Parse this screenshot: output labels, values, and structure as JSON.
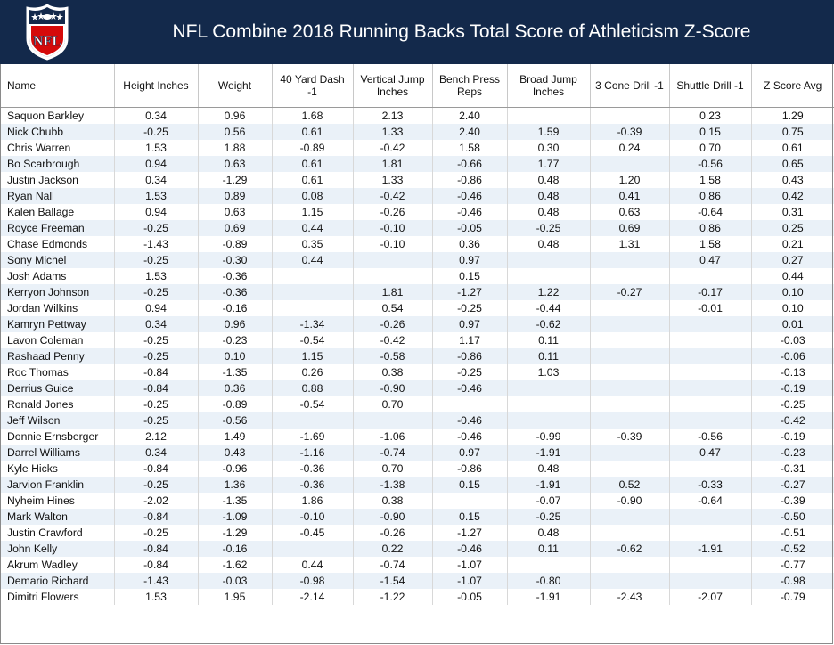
{
  "header": {
    "title": "NFL Combine 2018 Running Backs Total Score of Athleticism Z-Score",
    "logo_text": "NFL",
    "colors": {
      "navy": "#13294b",
      "red": "#d50a0a",
      "white": "#ffffff"
    }
  },
  "chart_data": {
    "type": "table",
    "title": "NFL Combine 2018 Running Backs Total Score of Athleticism Z-Score",
    "columns": [
      "Name",
      "Height Inches",
      "Weight",
      "40 Yard Dash -1",
      "Vertical Jump Inches",
      "Bench Press Reps",
      "Broad Jump Inches",
      "3 Cone Drill -1",
      "Shuttle Drill -1",
      "Z Score Avg"
    ],
    "rows": [
      [
        "Saquon Barkley",
        "0.34",
        "0.96",
        "1.68",
        "2.13",
        "2.40",
        "",
        "",
        "0.23",
        "1.29"
      ],
      [
        "Nick Chubb",
        "-0.25",
        "0.56",
        "0.61",
        "1.33",
        "2.40",
        "1.59",
        "-0.39",
        "0.15",
        "0.75"
      ],
      [
        "Chris Warren",
        "1.53",
        "1.88",
        "-0.89",
        "-0.42",
        "1.58",
        "0.30",
        "0.24",
        "0.70",
        "0.61"
      ],
      [
        "Bo Scarbrough",
        "0.94",
        "0.63",
        "0.61",
        "1.81",
        "-0.66",
        "1.77",
        "",
        "-0.56",
        "0.65"
      ],
      [
        "Justin Jackson",
        "0.34",
        "-1.29",
        "0.61",
        "1.33",
        "-0.86",
        "0.48",
        "1.20",
        "1.58",
        "0.43"
      ],
      [
        "Ryan Nall",
        "1.53",
        "0.89",
        "0.08",
        "-0.42",
        "-0.46",
        "0.48",
        "0.41",
        "0.86",
        "0.42"
      ],
      [
        "Kalen Ballage",
        "0.94",
        "0.63",
        "1.15",
        "-0.26",
        "-0.46",
        "0.48",
        "0.63",
        "-0.64",
        "0.31"
      ],
      [
        "Royce Freeman",
        "-0.25",
        "0.69",
        "0.44",
        "-0.10",
        "-0.05",
        "-0.25",
        "0.69",
        "0.86",
        "0.25"
      ],
      [
        "Chase Edmonds",
        "-1.43",
        "-0.89",
        "0.35",
        "-0.10",
        "0.36",
        "0.48",
        "1.31",
        "1.58",
        "0.21"
      ],
      [
        "Sony Michel",
        "-0.25",
        "-0.30",
        "0.44",
        "",
        "0.97",
        "",
        "",
        "0.47",
        "0.27"
      ],
      [
        "Josh Adams",
        "1.53",
        "-0.36",
        "",
        "",
        "0.15",
        "",
        "",
        "",
        "0.44"
      ],
      [
        "Kerryon Johnson",
        "-0.25",
        "-0.36",
        "",
        "1.81",
        "-1.27",
        "1.22",
        "-0.27",
        "-0.17",
        "0.10"
      ],
      [
        "Jordan Wilkins",
        "0.94",
        "-0.16",
        "",
        "0.54",
        "-0.25",
        "-0.44",
        "",
        "-0.01",
        "0.10"
      ],
      [
        "Kamryn Pettway",
        "0.34",
        "0.96",
        "-1.34",
        "-0.26",
        "0.97",
        "-0.62",
        "",
        "",
        "0.01"
      ],
      [
        "Lavon Coleman",
        "-0.25",
        "-0.23",
        "-0.54",
        "-0.42",
        "1.17",
        "0.11",
        "",
        "",
        "-0.03"
      ],
      [
        "Rashaad Penny",
        "-0.25",
        "0.10",
        "1.15",
        "-0.58",
        "-0.86",
        "0.11",
        "",
        "",
        "-0.06"
      ],
      [
        "Roc Thomas",
        "-0.84",
        "-1.35",
        "0.26",
        "0.38",
        "-0.25",
        "1.03",
        "",
        "",
        "-0.13"
      ],
      [
        "Derrius Guice",
        "-0.84",
        "0.36",
        "0.88",
        "-0.90",
        "-0.46",
        "",
        "",
        "",
        "-0.19"
      ],
      [
        "Ronald Jones",
        "-0.25",
        "-0.89",
        "-0.54",
        "0.70",
        "",
        "",
        "",
        "",
        "-0.25"
      ],
      [
        "Jeff Wilson",
        "-0.25",
        "-0.56",
        "",
        "",
        "-0.46",
        "",
        "",
        "",
        "-0.42"
      ],
      [
        "Donnie Ernsberger",
        "2.12",
        "1.49",
        "-1.69",
        "-1.06",
        "-0.46",
        "-0.99",
        "-0.39",
        "-0.56",
        "-0.19"
      ],
      [
        "Darrel Williams",
        "0.34",
        "0.43",
        "-1.16",
        "-0.74",
        "0.97",
        "-1.91",
        "",
        "0.47",
        "-0.23"
      ],
      [
        "Kyle Hicks",
        "-0.84",
        "-0.96",
        "-0.36",
        "0.70",
        "-0.86",
        "0.48",
        "",
        "",
        "-0.31"
      ],
      [
        "Jarvion Franklin",
        "-0.25",
        "1.36",
        "-0.36",
        "-1.38",
        "0.15",
        "-1.91",
        "0.52",
        "-0.33",
        "-0.27"
      ],
      [
        "Nyheim Hines",
        "-2.02",
        "-1.35",
        "1.86",
        "0.38",
        "",
        "-0.07",
        "-0.90",
        "-0.64",
        "-0.39"
      ],
      [
        "Mark Walton",
        "-0.84",
        "-1.09",
        "-0.10",
        "-0.90",
        "0.15",
        "-0.25",
        "",
        "",
        "-0.50"
      ],
      [
        "Justin Crawford",
        "-0.25",
        "-1.29",
        "-0.45",
        "-0.26",
        "-1.27",
        "0.48",
        "",
        "",
        "-0.51"
      ],
      [
        "John Kelly",
        "-0.84",
        "-0.16",
        "",
        "0.22",
        "-0.46",
        "0.11",
        "-0.62",
        "-1.91",
        "-0.52"
      ],
      [
        "Akrum Wadley",
        "-0.84",
        "-1.62",
        "0.44",
        "-0.74",
        "-1.07",
        "",
        "",
        "",
        "-0.77"
      ],
      [
        "Demario Richard",
        "-1.43",
        "-0.03",
        "-0.98",
        "-1.54",
        "-1.07",
        "-0.80",
        "",
        "",
        "-0.98"
      ],
      [
        "Dimitri Flowers",
        "1.53",
        "1.95",
        "-2.14",
        "-1.22",
        "-0.05",
        "-1.91",
        "-2.43",
        "-2.07",
        "-0.79"
      ]
    ],
    "row_stripe_color": "#eaf1f8"
  }
}
